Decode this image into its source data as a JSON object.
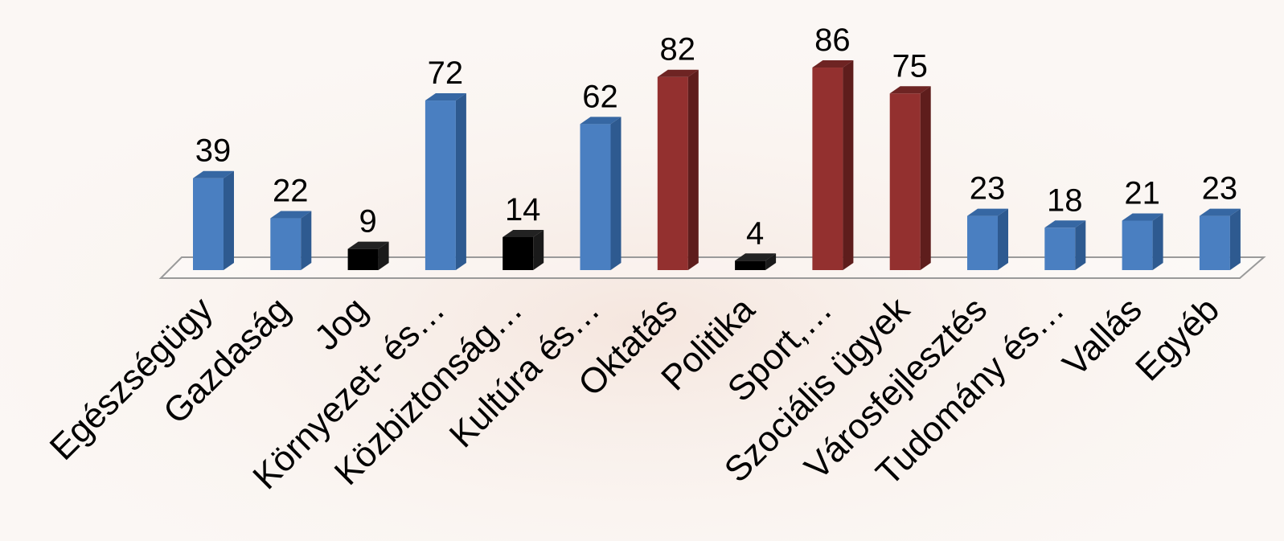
{
  "chart_data": {
    "type": "bar",
    "title": "",
    "xlabel": "",
    "ylabel": "",
    "ylim": [
      0,
      100
    ],
    "grid": false,
    "legend": "none",
    "categories": [
      "Egészségügy",
      "Gazdaság",
      "Jog",
      "Környezet- és…",
      "Közbiztonság…",
      "Kultúra és…",
      "Oktatás",
      "Politika",
      "Sport,…",
      "Szociális ügyek",
      "Városfejlesztés",
      "Tudomány és…",
      "Vallás",
      "Egyéb"
    ],
    "values": [
      39,
      22,
      9,
      72,
      14,
      62,
      82,
      4,
      86,
      75,
      23,
      18,
      21,
      23
    ],
    "value_labels": [
      "39",
      "22",
      "9",
      "72",
      "14",
      "62",
      "82",
      "4",
      "86",
      "75",
      "23",
      "18",
      "21",
      "23"
    ],
    "bar_colors": [
      "#4a7fc1",
      "#4a7fc1",
      "#000000",
      "#4a7fc1",
      "#000000",
      "#4a7fc1",
      "#93302f",
      "#000000",
      "#93302f",
      "#93302f",
      "#4a7fc1",
      "#4a7fc1",
      "#4a7fc1",
      "#4a7fc1"
    ],
    "bar_side_colors": [
      "#2e5a90",
      "#2e5a90",
      "#1a1a1a",
      "#2e5a90",
      "#1a1a1a",
      "#2e5a90",
      "#5e1d1c",
      "#1a1a1a",
      "#5e1d1c",
      "#5e1d1c",
      "#2e5a90",
      "#2e5a90",
      "#2e5a90",
      "#2e5a90"
    ],
    "bar_top_colors": [
      "#3667a3",
      "#3667a3",
      "#222222",
      "#3667a3",
      "#222222",
      "#3667a3",
      "#6e2423",
      "#222222",
      "#6e2423",
      "#6e2423",
      "#3667a3",
      "#3667a3",
      "#3667a3",
      "#3667a3"
    ]
  },
  "colors": {
    "background": "#fbf7f4",
    "floor_stroke": "#9a9a9a",
    "floor_fill": "#ffffff"
  }
}
